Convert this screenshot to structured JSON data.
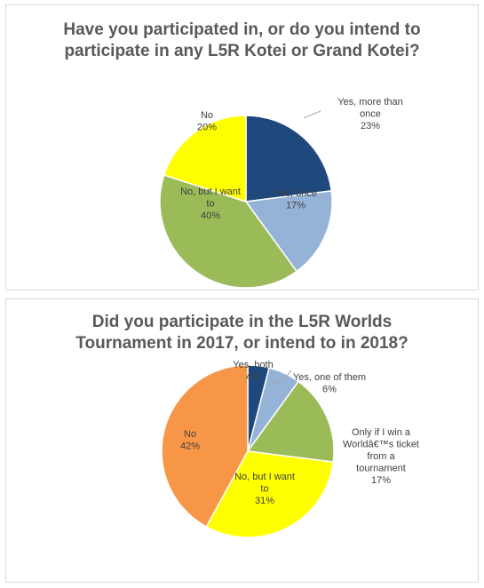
{
  "chart_data": [
    {
      "type": "pie",
      "title_lines": [
        "Have you participated in, or do you intend to",
        "participate in any L5R Kotei or Grand Kotei?"
      ],
      "slices": [
        {
          "label_lines": [
            "Yes, more than",
            "once"
          ],
          "pct_text": "23%",
          "value": 23,
          "color": "#1f497d"
        },
        {
          "label_lines": [
            "Yes, once"
          ],
          "pct_text": "17%",
          "value": 17,
          "color": "#95b3d7"
        },
        {
          "label_lines": [
            "No, but I want",
            "to"
          ],
          "pct_text": "40%",
          "value": 40,
          "color": "#9bbb59"
        },
        {
          "label_lines": [
            "No"
          ],
          "pct_text": "20%",
          "value": 20,
          "color": "#ffff00"
        }
      ]
    },
    {
      "type": "pie",
      "title_lines": [
        "Did you participate in the L5R Worlds",
        "Tournament in 2017, or intend to in 2018?"
      ],
      "slices": [
        {
          "label_lines": [
            "Yes, both"
          ],
          "pct_text": "4%",
          "value": 4,
          "color": "#1f497d"
        },
        {
          "label_lines": [
            "Yes, one of them"
          ],
          "pct_text": "6%",
          "value": 6,
          "color": "#95b3d7"
        },
        {
          "label_lines": [
            "Only if I win a",
            "Worldâ€™s ticket",
            "from a",
            "tournament"
          ],
          "pct_text": "17%",
          "value": 17,
          "color": "#9bbb59"
        },
        {
          "label_lines": [
            "No, but I want",
            "to"
          ],
          "pct_text": "31%",
          "value": 31,
          "color": "#ffff00"
        },
        {
          "label_lines": [
            "No"
          ],
          "pct_text": "42%",
          "value": 42,
          "color": "#f79646"
        }
      ]
    }
  ]
}
